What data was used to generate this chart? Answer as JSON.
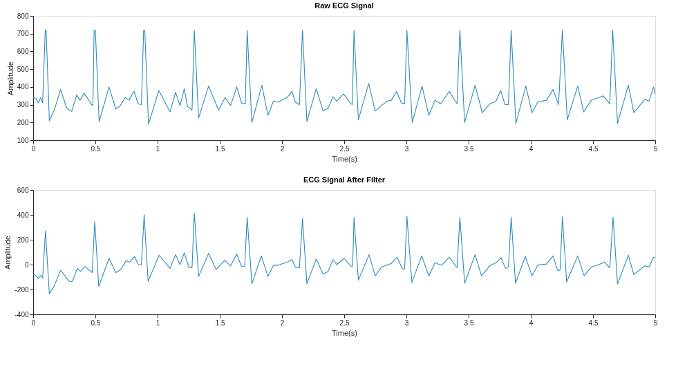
{
  "chart_data": [
    {
      "type": "line",
      "title": "Raw ECG Signal",
      "xlabel": "Time(s)",
      "ylabel": "Amplitude",
      "xlim": [
        0,
        5
      ],
      "xticks": [
        0,
        0.5,
        1,
        1.5,
        2,
        2.5,
        3,
        3.5,
        4,
        4.5,
        5
      ],
      "ylim": [
        100,
        800
      ],
      "yticks": [
        100,
        200,
        300,
        400,
        500,
        600,
        700,
        800
      ],
      "grid": false,
      "marker": "none",
      "line_style": "solid",
      "series": [
        {
          "color": "#2b8cbe",
          "x": [
            0,
            0.023,
            0.04,
            0.06,
            0.076,
            0.097,
            0.104,
            0.13,
            0.17,
            0.22,
            0.27,
            0.31,
            0.35,
            0.376,
            0.41,
            0.47,
            0.48,
            0.49,
            0.5,
            0.53,
            0.61,
            0.664,
            0.7,
            0.74,
            0.77,
            0.81,
            0.845,
            0.87,
            0.888,
            0.897,
            0.927,
            1.01,
            1.1,
            1.145,
            1.18,
            1.215,
            1.24,
            1.277,
            1.295,
            1.33,
            1.41,
            1.49,
            1.543,
            1.587,
            1.636,
            1.675,
            1.705,
            1.72,
            1.758,
            1.838,
            1.887,
            1.931,
            1.967,
            2.04,
            2.08,
            2.107,
            2.14,
            2.165,
            2.2,
            2.275,
            2.33,
            2.37,
            2.41,
            2.44,
            2.495,
            2.556,
            2.565,
            2.579,
            2.614,
            2.697,
            2.749,
            2.79,
            2.845,
            2.88,
            2.92,
            2.96,
            2.986,
            3.004,
            3.047,
            3.126,
            3.18,
            3.23,
            3.275,
            3.345,
            3.407,
            3.43,
            3.468,
            3.552,
            3.61,
            3.67,
            3.72,
            3.758,
            3.793,
            3.82,
            3.842,
            3.88,
            3.96,
            4.01,
            4.056,
            4.126,
            4.179,
            4.223,
            4.254,
            4.293,
            4.377,
            4.425,
            4.486,
            4.582,
            4.635,
            4.658,
            4.697,
            4.784,
            4.828,
            4.916,
            4.95,
            4.986,
            5.0
          ],
          "values": [
            340,
            335,
            310,
            340,
            310,
            720,
            720,
            210,
            270,
            385,
            280,
            262,
            355,
            325,
            365,
            300,
            295,
            720,
            720,
            205,
            400,
            275,
            295,
            340,
            325,
            375,
            305,
            300,
            720,
            720,
            190,
            380,
            260,
            370,
            295,
            390,
            290,
            270,
            720,
            225,
            405,
            270,
            340,
            295,
            400,
            310,
            305,
            720,
            200,
            410,
            240,
            320,
            315,
            340,
            375,
            315,
            300,
            720,
            205,
            390,
            265,
            280,
            345,
            320,
            360,
            305,
            300,
            720,
            215,
            420,
            265,
            290,
            320,
            325,
            375,
            310,
            305,
            720,
            200,
            405,
            240,
            325,
            305,
            375,
            305,
            720,
            200,
            410,
            255,
            305,
            320,
            380,
            300,
            300,
            720,
            195,
            405,
            255,
            315,
            325,
            385,
            300,
            720,
            215,
            405,
            260,
            325,
            350,
            305,
            720,
            195,
            410,
            255,
            330,
            320,
            400,
            360
          ]
        }
      ]
    },
    {
      "type": "line",
      "title": "ECG Signal After Filter",
      "xlabel": "Time(s)",
      "ylabel": "Amplitude",
      "xlim": [
        0,
        5
      ],
      "xticks": [
        0,
        0.5,
        1,
        1.5,
        2,
        2.5,
        3,
        3.5,
        4,
        4.5,
        5
      ],
      "ylim": [
        -400,
        600
      ],
      "yticks": [
        -400,
        -200,
        0,
        200,
        400,
        600
      ],
      "grid": false,
      "marker": "none",
      "line_style": "solid",
      "series": [
        {
          "color": "#2b8cbe",
          "x": [
            0,
            0.023,
            0.04,
            0.06,
            0.076,
            0.099,
            0.13,
            0.17,
            0.22,
            0.29,
            0.315,
            0.355,
            0.38,
            0.415,
            0.474,
            0.495,
            0.527,
            0.61,
            0.664,
            0.703,
            0.747,
            0.777,
            0.815,
            0.845,
            0.87,
            0.892,
            0.924,
            1.012,
            1.1,
            1.145,
            1.18,
            1.215,
            1.25,
            1.277,
            1.295,
            1.33,
            1.41,
            1.47,
            1.54,
            1.587,
            1.636,
            1.675,
            1.7,
            1.72,
            1.758,
            1.834,
            1.887,
            1.931,
            1.967,
            2.04,
            2.08,
            2.107,
            2.14,
            2.165,
            2.2,
            2.275,
            2.33,
            2.37,
            2.41,
            2.44,
            2.5,
            2.556,
            2.568,
            2.579,
            2.614,
            2.7,
            2.749,
            2.8,
            2.88,
            2.925,
            2.968,
            2.986,
            3.004,
            3.044,
            3.123,
            3.18,
            3.23,
            3.283,
            3.345,
            3.407,
            3.43,
            3.468,
            3.552,
            3.604,
            3.67,
            3.72,
            3.761,
            3.796,
            3.82,
            3.842,
            3.877,
            3.956,
            4.009,
            4.056,
            4.126,
            4.179,
            4.214,
            4.235,
            4.254,
            4.288,
            4.377,
            4.428,
            4.486,
            4.547,
            4.591,
            4.635,
            4.661,
            4.697,
            4.784,
            4.828,
            4.916,
            4.95,
            4.986,
            5.0
          ],
          "values": [
            -75,
            -90,
            -110,
            -85,
            -110,
            270,
            -235,
            -170,
            -45,
            -135,
            -135,
            -30,
            -55,
            -15,
            -65,
            345,
            -175,
            50,
            -65,
            -40,
            30,
            20,
            65,
            0,
            0,
            400,
            -135,
            75,
            -30,
            80,
            0,
            95,
            -20,
            -25,
            415,
            -95,
            90,
            -40,
            35,
            -10,
            85,
            -15,
            -15,
            380,
            -155,
            70,
            -95,
            -5,
            -5,
            20,
            40,
            -20,
            -25,
            370,
            -155,
            45,
            -75,
            -55,
            40,
            0,
            50,
            -15,
            -15,
            380,
            -125,
            80,
            -90,
            -20,
            10,
            60,
            -35,
            -35,
            390,
            -145,
            70,
            -90,
            15,
            -5,
            60,
            -25,
            380,
            -150,
            80,
            -90,
            -10,
            15,
            55,
            -30,
            -20,
            380,
            -150,
            65,
            -90,
            -5,
            5,
            70,
            -45,
            -45,
            385,
            -140,
            70,
            -90,
            -20,
            0,
            20,
            -25,
            380,
            -155,
            75,
            -80,
            -10,
            -20,
            60,
            60
          ]
        }
      ]
    }
  ]
}
